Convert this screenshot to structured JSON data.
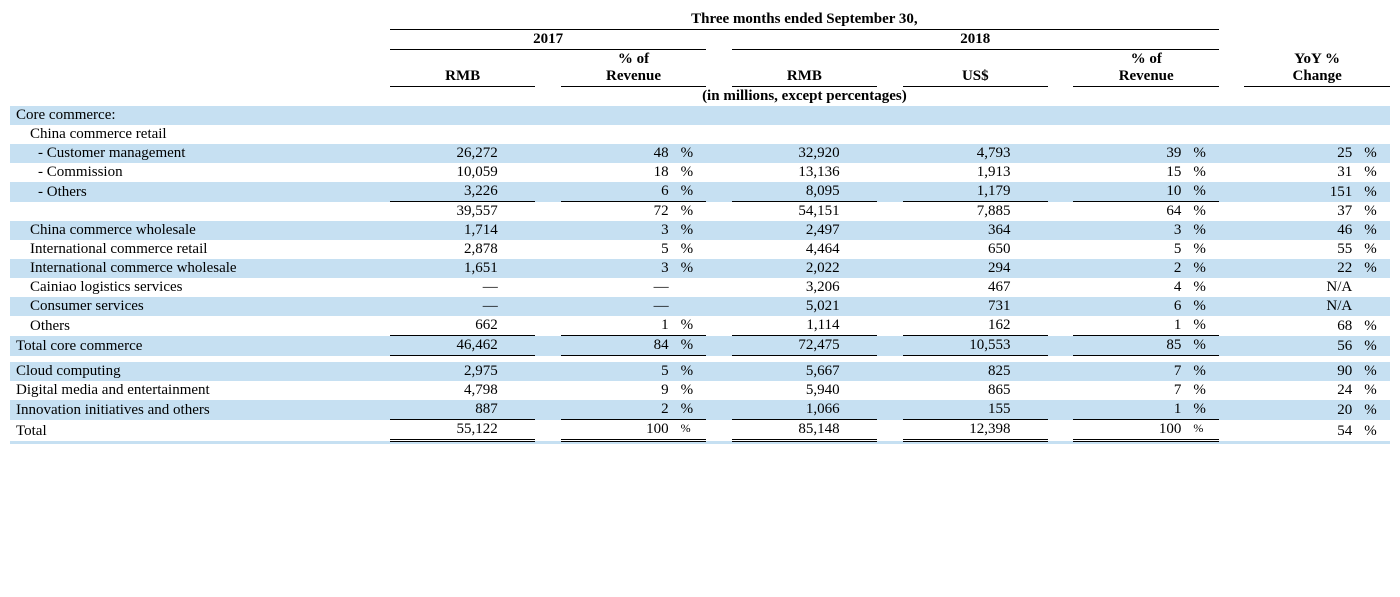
{
  "header": {
    "period": "Three months ended September 30,",
    "y2017": "2017",
    "y2018": "2018",
    "rmb": "RMB",
    "pctRev": "% of\nRevenue",
    "usd": "US$",
    "yoy": "YoY %\nChange",
    "units": "(in millions, except percentages)"
  },
  "sections": {
    "core": "Core commerce:",
    "chinaRetail": "China commerce retail"
  },
  "rows": {
    "custMgmt": {
      "label": "- Customer management",
      "rmb17": "26,272",
      "pct17": "48",
      "rmb18": "32,920",
      "usd18": "4,793",
      "pct18": "39",
      "yoy": "25"
    },
    "commission": {
      "label": "- Commission",
      "rmb17": "10,059",
      "pct17": "18",
      "rmb18": "13,136",
      "usd18": "1,913",
      "pct18": "15",
      "yoy": "31"
    },
    "others1": {
      "label": "- Others",
      "rmb17": "3,226",
      "pct17": "6",
      "rmb18": "8,095",
      "usd18": "1,179",
      "pct18": "10",
      "yoy": "151"
    },
    "subtotalCR": {
      "label": "",
      "rmb17": "39,557",
      "pct17": "72",
      "rmb18": "54,151",
      "usd18": "7,885",
      "pct18": "64",
      "yoy": "37"
    },
    "cnWholesale": {
      "label": "China commerce wholesale",
      "rmb17": "1,714",
      "pct17": "3",
      "rmb18": "2,497",
      "usd18": "364",
      "pct18": "3",
      "yoy": "46"
    },
    "intlRetail": {
      "label": "International commerce retail",
      "rmb17": "2,878",
      "pct17": "5",
      "rmb18": "4,464",
      "usd18": "650",
      "pct18": "5",
      "yoy": "55"
    },
    "intlWhole": {
      "label": "International commerce wholesale",
      "rmb17": "1,651",
      "pct17": "3",
      "rmb18": "2,022",
      "usd18": "294",
      "pct18": "2",
      "yoy": "22"
    },
    "cainiao": {
      "label": "Cainiao logistics services",
      "rmb17": "—",
      "pct17": "—",
      "rmb18": "3,206",
      "usd18": "467",
      "pct18": "4",
      "yoy": "N/A"
    },
    "consumer": {
      "label": "Consumer services",
      "rmb17": "—",
      "pct17": "—",
      "rmb18": "5,021",
      "usd18": "731",
      "pct18": "6",
      "yoy": "N/A"
    },
    "others2": {
      "label": "Others",
      "rmb17": "662",
      "pct17": "1",
      "rmb18": "1,114",
      "usd18": "162",
      "pct18": "1",
      "yoy": "68"
    },
    "totalCore": {
      "label": "Total core commerce",
      "rmb17": "46,462",
      "pct17": "84",
      "rmb18": "72,475",
      "usd18": "10,553",
      "pct18": "85",
      "yoy": "56"
    },
    "cloud": {
      "label": "Cloud computing",
      "rmb17": "2,975",
      "pct17": "5",
      "rmb18": "5,667",
      "usd18": "825",
      "pct18": "7",
      "yoy": "90"
    },
    "media": {
      "label": "Digital media and entertainment",
      "rmb17": "4,798",
      "pct17": "9",
      "rmb18": "5,940",
      "usd18": "865",
      "pct18": "7",
      "yoy": "24"
    },
    "innov": {
      "label": "Innovation initiatives and others",
      "rmb17": "887",
      "pct17": "2",
      "rmb18": "1,066",
      "usd18": "155",
      "pct18": "1",
      "yoy": "20"
    },
    "total": {
      "label": "Total",
      "rmb17": "55,122",
      "pct17": "100",
      "rmb18": "85,148",
      "usd18": "12,398",
      "pct18": "100",
      "yoy": "54"
    }
  },
  "pctSign": "%"
}
